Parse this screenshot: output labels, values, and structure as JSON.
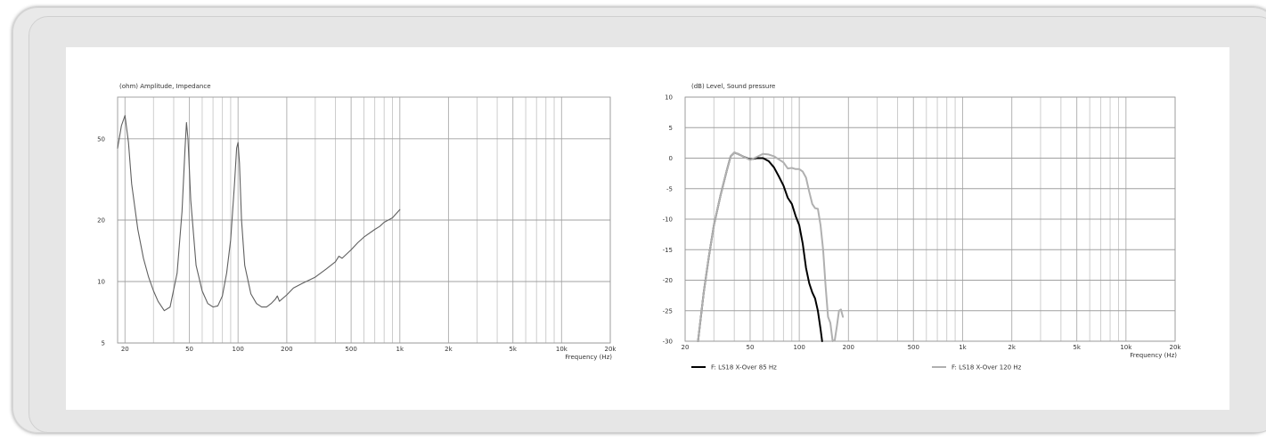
{
  "chart_data": [
    {
      "type": "line",
      "title": "(ohm)  Amplitude, Impedance",
      "xlabel": "Frequency  (Hz)",
      "ylabel": "(ohm)",
      "x_scale": "log",
      "y_scale": "log",
      "xlim": [
        18,
        20000
      ],
      "ylim": [
        5,
        80
      ],
      "x_tick_labels": [
        "20",
        "50",
        "100",
        "200",
        "500",
        "1k",
        "2k",
        "5k",
        "10k",
        "20k"
      ],
      "x_tick_values": [
        20,
        50,
        100,
        200,
        500,
        1000,
        2000,
        5000,
        10000,
        20000
      ],
      "y_tick_labels": [
        "5",
        "10",
        "20",
        "50"
      ],
      "y_tick_values": [
        5,
        10,
        20,
        50
      ],
      "grid": true,
      "series": [
        {
          "color": "#606060",
          "x": [
            18,
            19,
            20,
            21,
            22,
            24,
            26,
            28,
            30,
            32,
            35,
            38,
            42,
            45,
            47,
            48,
            49,
            51,
            55,
            60,
            65,
            70,
            75,
            80,
            85,
            90,
            95,
            98,
            100,
            102,
            105,
            110,
            120,
            130,
            140,
            150,
            160,
            170,
            175,
            180,
            200,
            220,
            250,
            300,
            350,
            400,
            420,
            440,
            500,
            550,
            600,
            700,
            750,
            800,
            900,
            1000
          ],
          "y": [
            45,
            58,
            65,
            48,
            30,
            18,
            13,
            10.5,
            9,
            8,
            7.2,
            7.5,
            11,
            22,
            45,
            60,
            50,
            25,
            12,
            9,
            7.8,
            7.5,
            7.6,
            8.5,
            11,
            16,
            30,
            45,
            48,
            38,
            20,
            12,
            8.7,
            7.8,
            7.5,
            7.5,
            7.8,
            8.2,
            8.5,
            8,
            8.6,
            9.3,
            9.8,
            10.5,
            11.5,
            12.5,
            13.3,
            13,
            14.3,
            15.5,
            16.5,
            18,
            18.6,
            19.5,
            20.5,
            22.5
          ]
        }
      ]
    },
    {
      "type": "line",
      "title": "(dB)  Level, Sound pressure",
      "xlabel": "Frequency  (Hz)",
      "ylabel": "(dB)",
      "x_scale": "log",
      "xlim": [
        20,
        20000
      ],
      "ylim": [
        -30,
        10
      ],
      "x_tick_labels": [
        "20",
        "50",
        "100",
        "200",
        "500",
        "1k",
        "2k",
        "5k",
        "10k",
        "20k"
      ],
      "x_tick_values": [
        20,
        50,
        100,
        200,
        500,
        1000,
        2000,
        5000,
        10000,
        20000
      ],
      "y_tick_labels": [
        "10",
        "5",
        "0",
        "-5",
        "-10",
        "-15",
        "-20",
        "-25",
        "-30"
      ],
      "y_tick_values": [
        10,
        5,
        0,
        -5,
        -10,
        -15,
        -20,
        -25,
        -30
      ],
      "grid": true,
      "legend_position": "bottom",
      "series": [
        {
          "name": "F: LS18 X-Over 85 Hz",
          "color": "#000000",
          "x": [
            24,
            26,
            28,
            30,
            33,
            36,
            38,
            40,
            42,
            45,
            50,
            55,
            60,
            65,
            70,
            75,
            80,
            85,
            90,
            95,
            100,
            105,
            110,
            115,
            120,
            125,
            130,
            135,
            138
          ],
          "y": [
            -30,
            -22,
            -16,
            -11,
            -6,
            -2,
            0.3,
            0.9,
            0.7,
            0.3,
            -0.2,
            0,
            0,
            -0.5,
            -1.5,
            -3,
            -4.5,
            -6.5,
            -7.5,
            -9.5,
            -11,
            -14,
            -18,
            -20.5,
            -22,
            -23,
            -25,
            -28,
            -30
          ]
        },
        {
          "name": "F: LS18 X-Over 120 Hz",
          "color": "#b0b0b0",
          "x": [
            24,
            26,
            28,
            30,
            33,
            36,
            38,
            40,
            42,
            45,
            50,
            55,
            60,
            65,
            70,
            75,
            80,
            85,
            90,
            95,
            100,
            105,
            110,
            115,
            120,
            125,
            130,
            135,
            140,
            145,
            150,
            155,
            160,
            165,
            170,
            175,
            180,
            185
          ],
          "y": [
            -30,
            -22,
            -16,
            -11,
            -6,
            -2,
            0.3,
            0.9,
            0.7,
            0.3,
            -0.3,
            0.2,
            0.7,
            0.6,
            0.3,
            -0.2,
            -0.7,
            -1.7,
            -1.6,
            -1.8,
            -1.8,
            -2.2,
            -3.2,
            -5.5,
            -7.5,
            -8.2,
            -8.3,
            -11,
            -15,
            -21,
            -26,
            -27,
            -30,
            -29.8,
            -27.5,
            -25,
            -24.8,
            -26
          ]
        }
      ]
    }
  ]
}
